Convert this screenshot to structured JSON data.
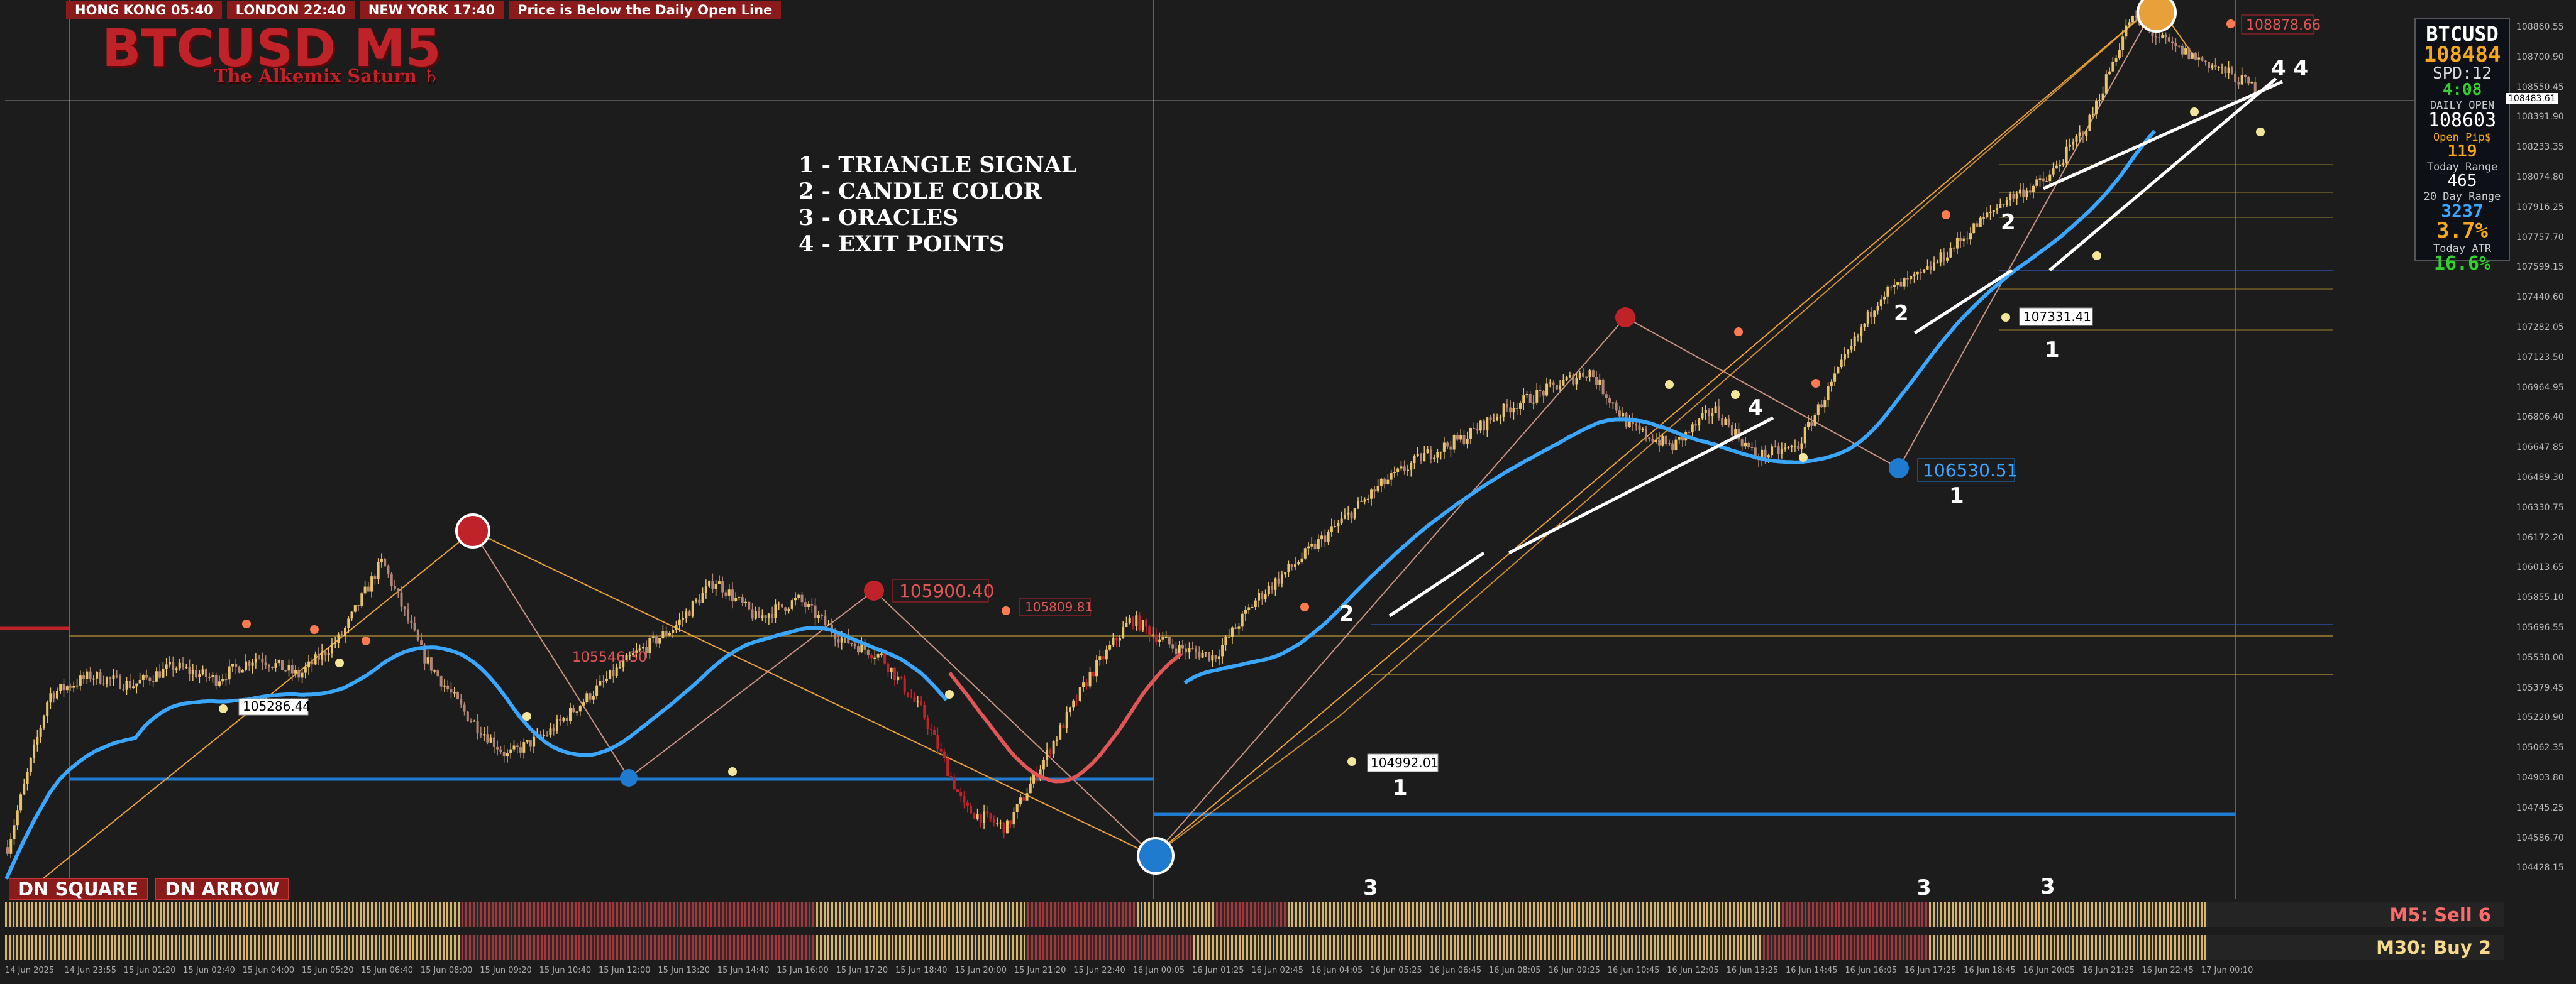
{
  "topbar": {
    "hong_kong": "HONG KONG 05:40",
    "london": "LONDON  22:40",
    "new_york": "NEW YORK 17:40",
    "status": "Price is Below the Daily Open Line"
  },
  "header": {
    "symbol_title": "BTCUSD M5",
    "subtitle": "The Alkemix Saturn ♄"
  },
  "legend": [
    "1 - TRIANGLE SIGNAL",
    "2 - CANDLE COLOR",
    "3 - ORACLES",
    "4 - EXIT POINTS"
  ],
  "info_panel": {
    "symbol": "BTCUSD",
    "price": "108484",
    "spread": "SPD:12",
    "timer": "4:08",
    "daily_open_label": "DAILY OPEN",
    "daily_open": "108603",
    "open_pips_label": "Open Pip$",
    "open_pips": "119",
    "today_range_label": "Today Range",
    "today_range": "465",
    "day20_range_label": "20 Day Range",
    "day20_range": "3237",
    "ratio": "3.7%",
    "atr_label": "Today ATR",
    "atr": "16.6%"
  },
  "badges": {
    "dn_square": "DN SQUARE",
    "dn_arrow": "DN ARROW"
  },
  "signals": {
    "m5": "M5: Sell 6",
    "m30": "M30: Buy 2"
  },
  "current_price_tag": "108483.61",
  "price_labels": {
    "p1": "105286.44",
    "p2": "105546.30",
    "p3": "105900.40",
    "p4": "105809.81",
    "p5": "104992.01",
    "p6": "106530.51",
    "p7": "107331.41",
    "p8": "108878.66"
  },
  "chart_markers": {
    "m1": "2",
    "m2": "1",
    "m3": "2",
    "m4": "2",
    "m5": "1",
    "m6": "1",
    "m7": "4",
    "m8": "4 4",
    "m9": "3",
    "m10": "3",
    "m11": "3"
  },
  "colors": {
    "background": "#1c1c1c",
    "bull": "#e8c36a",
    "bear": "#c0222a",
    "neutral": "#b28576",
    "ma_blue": "#3aa6ff",
    "ma_red": "#e05555",
    "support": "#1e7bd0"
  },
  "chart_data": {
    "type": "line",
    "symbol": "BTCUSD",
    "timeframe": "M5",
    "ylim": [
      104428.13,
      108878.66
    ],
    "y_ticks": [
      "108860.55",
      "108700.90",
      "108550.45",
      "108391.90",
      "108233.35",
      "108074.80",
      "107916.25",
      "107757.70",
      "107599.15",
      "107440.60",
      "107282.05",
      "107123.50",
      "106964.95",
      "106806.40",
      "106647.85",
      "106489.30",
      "106330.75",
      "106172.20",
      "106013.65",
      "105855.10",
      "105696.55",
      "105538.00",
      "105379.45",
      "105220.90",
      "105062.35",
      "104903.80",
      "104745.25",
      "104586.70",
      "104428.15"
    ],
    "x_ticks": [
      "14 Jun 2025",
      "14 Jun 23:55",
      "15 Jun 01:20",
      "15 Jun 02:40",
      "15 Jun 04:00",
      "15 Jun 05:20",
      "15 Jun 06:40",
      "15 Jun 08:00",
      "15 Jun 09:20",
      "15 Jun 10:40",
      "15 Jun 12:00",
      "15 Jun 13:20",
      "15 Jun 14:40",
      "15 Jun 16:00",
      "15 Jun 17:20",
      "15 Jun 18:40",
      "15 Jun 20:00",
      "15 Jun 21:20",
      "15 Jun 22:40",
      "16 Jun 00:05",
      "16 Jun 01:25",
      "16 Jun 02:45",
      "16 Jun 04:05",
      "16 Jun 05:25",
      "16 Jun 06:45",
      "16 Jun 08:05",
      "16 Jun 09:25",
      "16 Jun 10:45",
      "16 Jun 12:05",
      "16 Jun 13:25",
      "16 Jun 14:45",
      "16 Jun 16:05",
      "16 Jun 17:25",
      "16 Jun 18:45",
      "16 Jun 20:05",
      "16 Jun 21:25",
      "16 Jun 22:45",
      "17 Jun 00:10"
    ],
    "series": [
      {
        "values": [
          104500,
          105300,
          105400,
          105350,
          105450,
          105380,
          105500,
          105400,
          105600,
          106000,
          105500,
          105200,
          104980,
          105100,
          105300,
          105500,
          105650,
          105900,
          105700,
          105800,
          105600,
          105500,
          105200,
          104700,
          104600,
          105000,
          105400,
          105700,
          105550,
          105500,
          105800,
          106000,
          106200,
          106400,
          106550,
          106650,
          106800,
          106900,
          107000,
          106700,
          106600,
          106800,
          106550,
          106600,
          107000,
          107400,
          107500,
          107700,
          107900,
          108000,
          108300,
          108850,
          108700,
          108600,
          108484
        ]
      }
    ]
  }
}
